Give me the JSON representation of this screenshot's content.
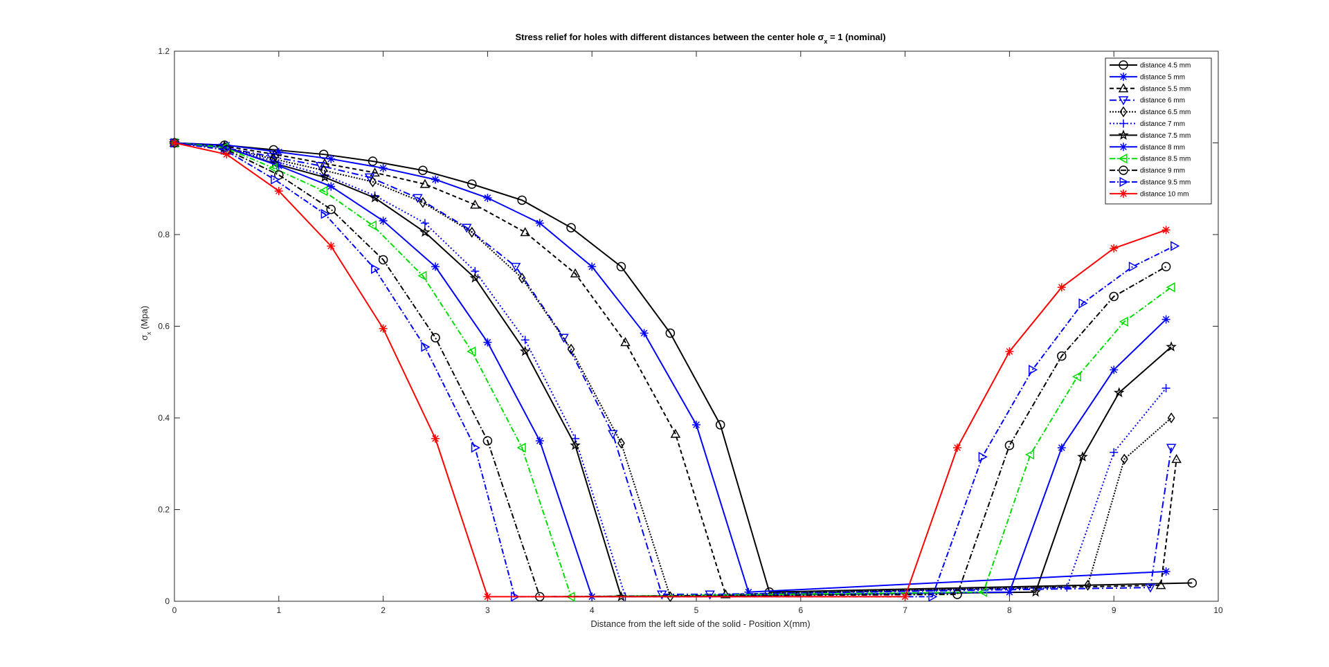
{
  "chart_data": {
    "type": "line",
    "title": "Stress relief for holes with different distances between the center hole σ",
    "title_subscript": "x",
    "title_suffix": " = 1 (nominal)",
    "xlabel": "Distance from the left side of the solid  - Position X(mm)",
    "ylabel_main": "σ",
    "ylabel_sub": "x",
    "ylabel_suffix": " (Mpa)",
    "xlim": [
      0,
      10
    ],
    "ylim": [
      0,
      1.2
    ],
    "xticks": [
      "0",
      "1",
      "2",
      "3",
      "4",
      "5",
      "6",
      "7",
      "8",
      "9",
      "10"
    ],
    "yticks": [
      "0",
      "0.2",
      "0.4",
      "0.6",
      "0.8",
      "1.2"
    ],
    "ytick_values": [
      0,
      0.2,
      0.4,
      0.6,
      0.8,
      1.2
    ],
    "grid": false,
    "legend_position": "top-right",
    "series": [
      {
        "name": "distance 4.5 mm",
        "color": "#000000",
        "dash": "solid",
        "marker": "circle",
        "x": [
          0,
          0.48,
          0.95,
          1.43,
          1.9,
          2.38,
          2.85,
          3.33,
          3.8,
          4.28,
          4.75,
          5.23,
          5.7,
          9.75
        ],
        "y": [
          1.0,
          0.995,
          0.985,
          0.975,
          0.96,
          0.94,
          0.91,
          0.875,
          0.815,
          0.73,
          0.585,
          0.385,
          0.02,
          0.04
        ]
      },
      {
        "name": "distance 5 mm",
        "color": "#0000ff",
        "dash": "solid",
        "marker": "asterisk",
        "x": [
          0,
          0.5,
          1.0,
          1.5,
          2.0,
          2.5,
          3.0,
          3.5,
          4.0,
          4.5,
          5.0,
          5.5,
          9.5
        ],
        "y": [
          1.0,
          0.995,
          0.98,
          0.965,
          0.945,
          0.92,
          0.88,
          0.825,
          0.73,
          0.585,
          0.385,
          0.02,
          0.065
        ]
      },
      {
        "name": "distance 5.5 mm",
        "color": "#000000",
        "dash": "6,4",
        "marker": "triangle-up",
        "x": [
          0,
          0.48,
          0.96,
          1.44,
          1.92,
          2.4,
          2.88,
          3.36,
          3.84,
          4.32,
          4.8,
          5.28,
          9.45,
          9.6
        ],
        "y": [
          1.0,
          0.993,
          0.975,
          0.955,
          0.935,
          0.91,
          0.865,
          0.805,
          0.715,
          0.565,
          0.365,
          0.015,
          0.035,
          0.31
        ]
      },
      {
        "name": "distance 6 mm",
        "color": "#0000ff",
        "dash": "10,4,2,4",
        "marker": "triangle-down",
        "x": [
          0,
          0.47,
          0.93,
          1.4,
          1.87,
          2.33,
          2.8,
          3.27,
          3.73,
          4.2,
          4.67,
          5.13,
          9.35,
          9.55
        ],
        "y": [
          1.0,
          0.99,
          0.97,
          0.95,
          0.925,
          0.88,
          0.815,
          0.73,
          0.575,
          0.365,
          0.015,
          0.015,
          0.03,
          0.335
        ]
      },
      {
        "name": "distance 6.5 mm",
        "color": "#000000",
        "dash": "2,2",
        "marker": "diamond",
        "x": [
          0,
          0.48,
          0.95,
          1.43,
          1.9,
          2.38,
          2.85,
          3.33,
          3.8,
          4.28,
          4.75,
          8.75,
          9.1,
          9.55
        ],
        "y": [
          1.0,
          0.99,
          0.965,
          0.94,
          0.915,
          0.87,
          0.805,
          0.705,
          0.55,
          0.345,
          0.01,
          0.035,
          0.31,
          0.4
        ]
      },
      {
        "name": "distance 7 mm",
        "color": "#0000ff",
        "dash": "2,3",
        "marker": "plus",
        "x": [
          0,
          0.48,
          0.96,
          1.44,
          1.92,
          2.4,
          2.88,
          3.36,
          3.84,
          4.32,
          8.55,
          9.0,
          9.5
        ],
        "y": [
          1.0,
          0.99,
          0.96,
          0.93,
          0.885,
          0.825,
          0.72,
          0.57,
          0.355,
          0.01,
          0.03,
          0.325,
          0.465
        ]
      },
      {
        "name": "distance 7.5 mm",
        "color": "#000000",
        "dash": "solid",
        "marker": "star",
        "x": [
          0,
          0.48,
          0.96,
          1.44,
          1.92,
          2.4,
          2.88,
          3.36,
          3.84,
          4.28,
          8.25,
          8.7,
          9.05,
          9.55
        ],
        "y": [
          1.0,
          0.99,
          0.955,
          0.925,
          0.88,
          0.805,
          0.705,
          0.545,
          0.34,
          0.01,
          0.02,
          0.315,
          0.455,
          0.555
        ]
      },
      {
        "name": "distance 8 mm",
        "color": "#0000ff",
        "dash": "solid",
        "marker": "asterisk",
        "x": [
          0,
          0.5,
          1.0,
          1.5,
          2.0,
          2.5,
          3.0,
          3.5,
          4.0,
          8.0,
          8.5,
          9.0,
          9.5
        ],
        "y": [
          1.0,
          0.99,
          0.95,
          0.905,
          0.83,
          0.73,
          0.565,
          0.35,
          0.01,
          0.02,
          0.335,
          0.505,
          0.615
        ]
      },
      {
        "name": "distance 8.5 mm",
        "color": "#00dd00",
        "dash": "8,3,2,3",
        "marker": "triangle-left",
        "x": [
          0,
          0.48,
          0.95,
          1.43,
          1.9,
          2.38,
          2.85,
          3.33,
          3.8,
          7.75,
          8.2,
          8.65,
          9.1,
          9.55
        ],
        "y": [
          1.0,
          0.99,
          0.945,
          0.895,
          0.82,
          0.71,
          0.545,
          0.335,
          0.01,
          0.02,
          0.32,
          0.49,
          0.61,
          0.685
        ]
      },
      {
        "name": "distance 9 mm",
        "color": "#000000",
        "dash": "8,3,2,3",
        "marker": "circle",
        "x": [
          0,
          0.5,
          1.0,
          1.5,
          2.0,
          2.5,
          3.0,
          3.5,
          7.5,
          8.0,
          8.5,
          9.0,
          9.5
        ],
        "y": [
          1.0,
          0.985,
          0.93,
          0.855,
          0.745,
          0.575,
          0.35,
          0.01,
          0.015,
          0.34,
          0.535,
          0.665,
          0.73
        ]
      },
      {
        "name": "distance 9.5 mm",
        "color": "#0000ff",
        "dash": "8,3,2,3",
        "marker": "triangle-right",
        "x": [
          0,
          0.48,
          0.96,
          1.44,
          1.92,
          2.4,
          2.88,
          3.26,
          7.26,
          7.74,
          8.22,
          8.7,
          9.18,
          9.58
        ],
        "y": [
          1.0,
          0.985,
          0.92,
          0.845,
          0.725,
          0.555,
          0.335,
          0.01,
          0.01,
          0.315,
          0.505,
          0.65,
          0.73,
          0.775
        ]
      },
      {
        "name": "distance 10 mm",
        "color": "#ff0000",
        "dash": "solid",
        "marker": "asterisk",
        "x": [
          0,
          0.5,
          1.0,
          1.5,
          2.0,
          2.5,
          3.0,
          7.0,
          7.5,
          8.0,
          8.5,
          9.0,
          9.5
        ],
        "y": [
          1.0,
          0.975,
          0.895,
          0.775,
          0.595,
          0.355,
          0.01,
          0.01,
          0.335,
          0.545,
          0.685,
          0.77,
          0.81
        ]
      }
    ]
  }
}
